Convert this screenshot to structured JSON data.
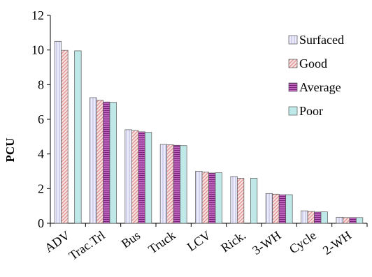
{
  "chart_data": {
    "type": "bar",
    "title": "",
    "xlabel": "",
    "ylabel": "PCU",
    "ylim": [
      0,
      12
    ],
    "yticks": [
      0,
      2,
      4,
      6,
      8,
      10,
      12
    ],
    "ytick_labels": [
      "0",
      "2",
      "4",
      "6",
      "8",
      "10",
      "12"
    ],
    "grid": false,
    "legend_position": "top-right",
    "categories": [
      "ADV",
      "Trac.Trl",
      "Bus",
      "Truck",
      "LCV",
      "Rick.",
      "3-WH",
      "Cycle",
      "2-WH"
    ],
    "series": [
      {
        "name": "Surfaced",
        "color": "#e6e6fa",
        "pattern": "vertical-lines",
        "values": [
          10.5,
          7.25,
          5.4,
          4.55,
          3.0,
          2.7,
          1.72,
          0.72,
          0.35
        ]
      },
      {
        "name": "Good",
        "color": "#f2b8b8",
        "pattern": "diagonal-hatch",
        "values": [
          9.98,
          7.1,
          5.35,
          4.53,
          2.95,
          2.6,
          1.68,
          0.68,
          0.33
        ]
      },
      {
        "name": "Average",
        "color": "#cc66cc",
        "pattern": "horizontal-lines",
        "values": [
          null,
          7.0,
          5.28,
          4.5,
          2.9,
          null,
          1.65,
          0.65,
          0.33
        ]
      },
      {
        "name": "Poor",
        "color": "#b8e6e6",
        "pattern": "solid",
        "values": [
          9.95,
          6.98,
          5.25,
          4.48,
          2.92,
          2.6,
          1.65,
          0.66,
          0.33
        ]
      }
    ]
  }
}
